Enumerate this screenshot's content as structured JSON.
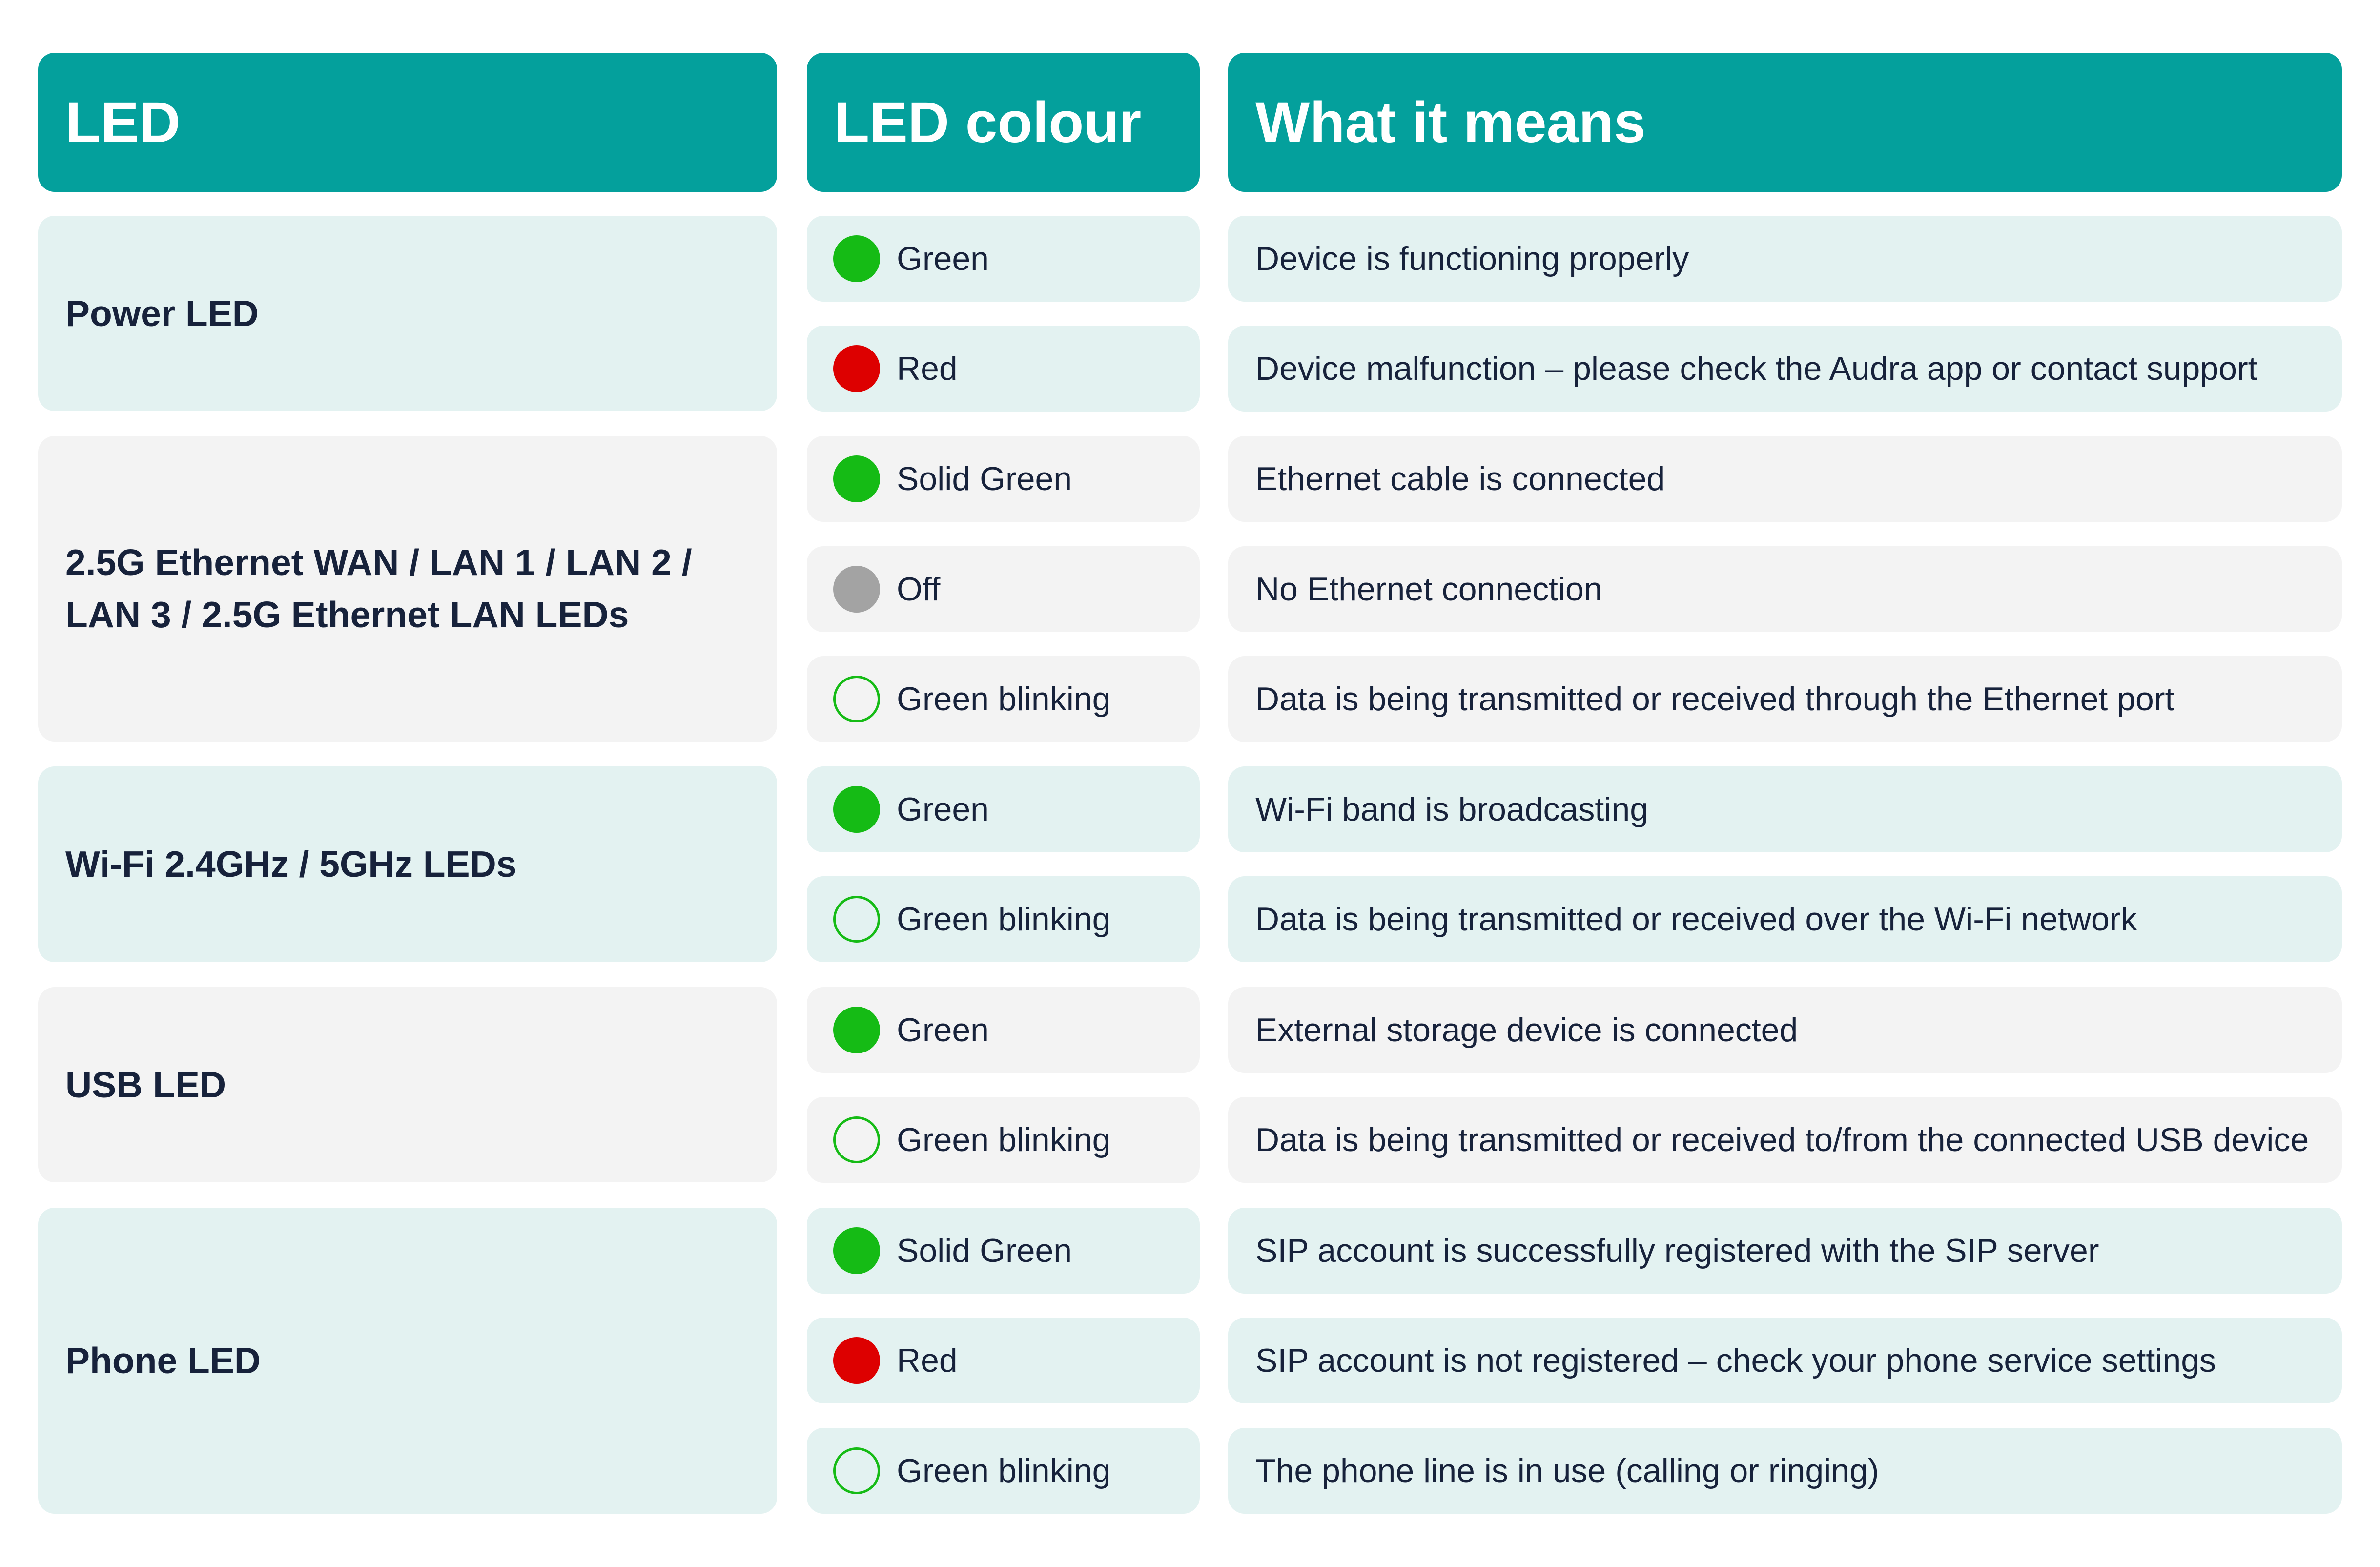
{
  "header": {
    "led": "LED",
    "colour": "LED colour",
    "meaning": "What it means"
  },
  "colors": {
    "header_bg": "#04a09c",
    "row_teal": "#e3f2f1",
    "row_grey": "#f3f3f3",
    "green": "#15bb15",
    "red": "#dd0000",
    "off": "#a3a3a3"
  },
  "groups": [
    {
      "led": "Power LED",
      "rows": [
        {
          "indicator": "green-solid",
          "colour": "Green",
          "meaning": "Device is functioning properly"
        },
        {
          "indicator": "red-solid",
          "colour": "Red",
          "meaning": "Device malfunction – please check the Audra app or contact support"
        }
      ]
    },
    {
      "led_line1": "2.5G Ethernet WAN / LAN 1 / LAN 2 /",
      "led_line2": "LAN 3 / 2.5G Ethernet LAN LEDs",
      "rows": [
        {
          "indicator": "green-solid",
          "colour": "Solid Green",
          "meaning": "Ethernet cable is connected"
        },
        {
          "indicator": "grey-solid",
          "colour": "Off",
          "meaning": "No Ethernet connection"
        },
        {
          "indicator": "green-ring",
          "colour": "Green blinking",
          "meaning": "Data is being transmitted or received through the Ethernet port"
        }
      ]
    },
    {
      "led": "Wi-Fi 2.4GHz / 5GHz LEDs",
      "rows": [
        {
          "indicator": "green-solid",
          "colour": "Green",
          "meaning": "Wi-Fi band is broadcasting"
        },
        {
          "indicator": "green-ring",
          "colour": "Green blinking",
          "meaning": "Data is being transmitted or received over the Wi-Fi network"
        }
      ]
    },
    {
      "led": "USB LED",
      "rows": [
        {
          "indicator": "green-solid",
          "colour": "Green",
          "meaning": "External storage device is connected"
        },
        {
          "indicator": "green-ring",
          "colour": "Green blinking",
          "meaning": "Data is being transmitted or received to/from the connected USB device"
        }
      ]
    },
    {
      "led": "Phone LED",
      "rows": [
        {
          "indicator": "green-solid",
          "colour": "Solid Green",
          "meaning": "SIP account is successfully registered with the SIP server"
        },
        {
          "indicator": "red-solid",
          "colour": "Red",
          "meaning": "SIP account is not registered – check your phone service settings"
        },
        {
          "indicator": "green-ring",
          "colour": "Green blinking",
          "meaning": "The phone line is in use (calling or ringing)"
        }
      ]
    }
  ]
}
